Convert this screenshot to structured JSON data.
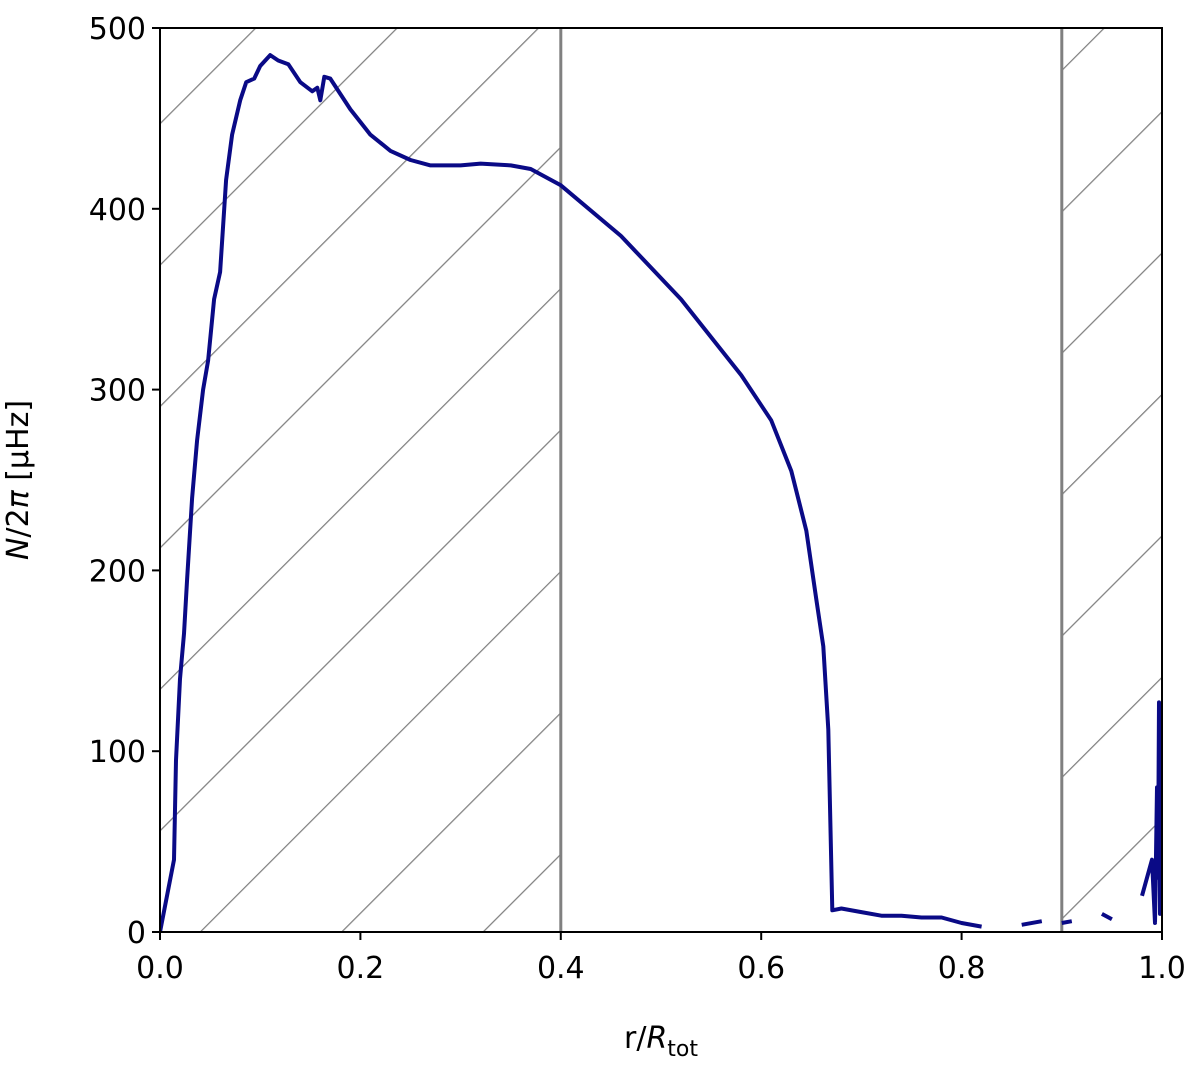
{
  "chart_data": {
    "type": "line",
    "xlabel": [
      "r/",
      "R",
      "tot"
    ],
    "ylabel": [
      "N",
      "/2",
      "π",
      " [μHz]"
    ],
    "x": [
      0,
      0.014,
      0.016,
      0.02,
      0.024,
      0.027,
      0.032,
      0.037,
      0.043,
      0.048,
      0.054,
      0.06,
      0.066,
      0.072,
      0.08,
      0.086,
      0.094,
      0.1,
      0.11,
      0.118,
      0.128,
      0.14,
      0.152,
      0.157,
      0.16,
      0.164,
      0.17,
      0.19,
      0.21,
      0.23,
      0.25,
      0.27,
      0.3,
      0.32,
      0.35,
      0.37,
      0.4,
      0.46,
      0.52,
      0.58,
      0.61,
      0.63,
      0.645,
      0.655,
      0.662,
      0.667,
      0.671,
      0.68,
      0.7,
      0.72,
      0.74,
      0.76,
      0.78,
      0.8,
      0.82,
      0.84,
      0.86,
      0.88,
      0.89,
      0.9,
      0.91,
      0.93,
      0.94,
      0.95,
      0.97,
      0.98,
      0.99,
      0.993,
      0.995,
      0.996,
      0.997,
      0.998,
      0.999,
      1.0
    ],
    "series": [
      {
        "color": "#0a0a86",
        "values": [
          0,
          40,
          95,
          140,
          165,
          195,
          240,
          272,
          300,
          316,
          350,
          365,
          416,
          441,
          460,
          470,
          472,
          479,
          485,
          482,
          480,
          470,
          465,
          467,
          460,
          473,
          472,
          455,
          441,
          432,
          427,
          424,
          424,
          425,
          424,
          422,
          413,
          385,
          350,
          308,
          283,
          255,
          222,
          184,
          158,
          112,
          12,
          13,
          11,
          9,
          9,
          8,
          8,
          5,
          3,
          null,
          4,
          6,
          null,
          5,
          6,
          null,
          10,
          7,
          null,
          20,
          40,
          5,
          80,
          30,
          127,
          10,
          120,
          60
        ]
      }
    ],
    "hatched_regions": [
      [
        0,
        0.4
      ],
      [
        0.9,
        1.0
      ]
    ],
    "region_color": "#808080",
    "xlim": [
      0,
      1
    ],
    "ylim": [
      0,
      500
    ],
    "xticks": [
      {
        "value": 0,
        "label": "0.0"
      },
      0.2,
      0.4,
      0.6,
      0.8,
      {
        "value": 1,
        "label": "1.0"
      }
    ],
    "yticks": [
      0,
      100,
      200,
      300,
      400,
      500
    ]
  }
}
